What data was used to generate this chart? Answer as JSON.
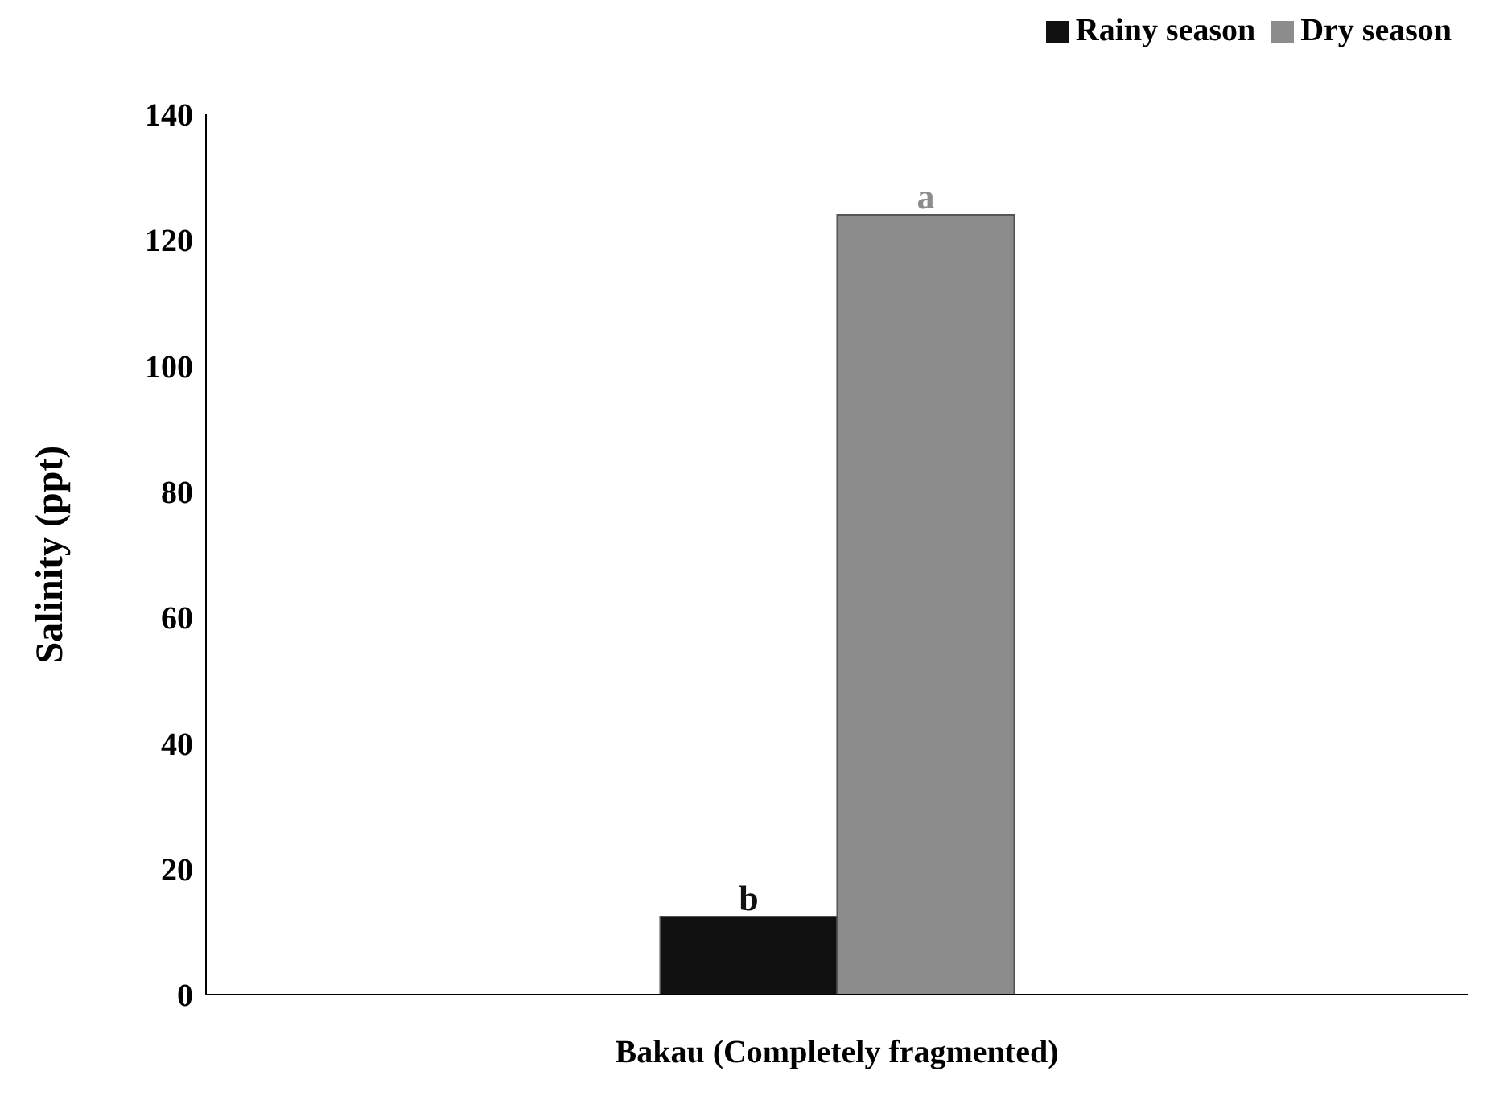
{
  "chart_data": {
    "type": "bar",
    "categories": [
      "Bakau (Completely fragmented)"
    ],
    "series": [
      {
        "name": "Rainy season",
        "color": "#111111",
        "values": [
          12.4
        ]
      },
      {
        "name": "Dry season",
        "color": "#8c8c8c",
        "values": [
          124
        ]
      }
    ],
    "ylabel": "Salinity (ppt)",
    "ylim": [
      0,
      140
    ],
    "yticks": [
      0,
      20,
      40,
      60,
      80,
      100,
      120,
      140
    ],
    "grid": false,
    "legend": "top right",
    "annotations": [
      {
        "text": "b",
        "x": "Bakau (Completely fragmented)",
        "y": 12.4
      },
      {
        "text": "a",
        "x": "Bakau (Completely fragmented)",
        "y": 124
      }
    ]
  }
}
